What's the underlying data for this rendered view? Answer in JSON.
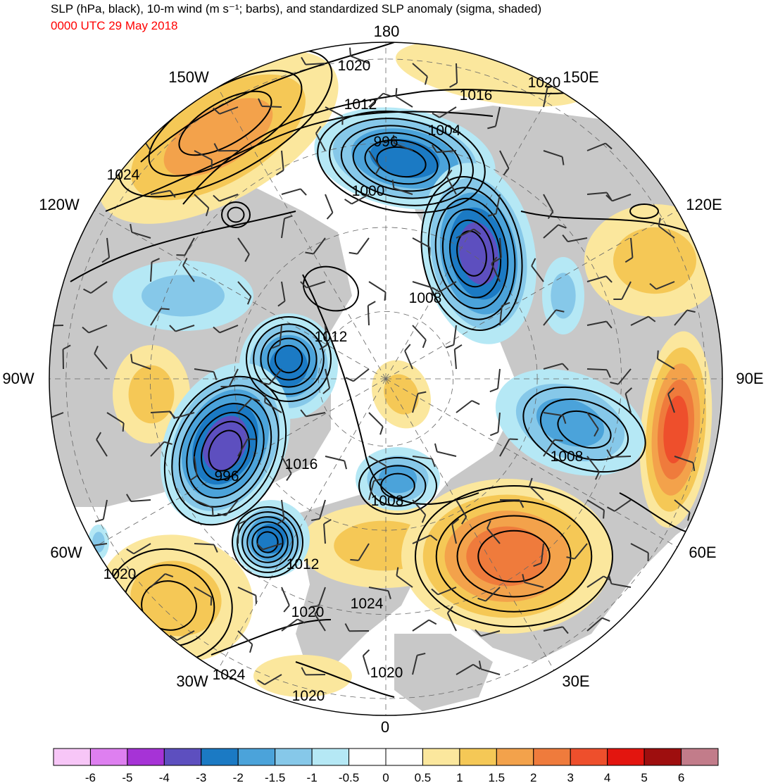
{
  "header": {
    "title": "SLP (hPa, black), 10-m wind (m s⁻¹; barbs), and standardized SLP anomaly (sigma, shaded)",
    "valid_time": "0000 UTC 29 May 2018"
  },
  "map": {
    "projection": "north polar stereographic",
    "longitude_labels": [
      "180",
      "150E",
      "120E",
      "90E",
      "60E",
      "30E",
      "0",
      "30W",
      "60W",
      "90W",
      "120W",
      "150W"
    ],
    "contour_labels": [
      "1020",
      "1016",
      "1020",
      "1012",
      "1004",
      "996",
      "1000",
      "1024",
      "1008",
      "1012",
      "1016",
      "996",
      "1008",
      "1008",
      "1012",
      "1020",
      "1020",
      "1024",
      "1020",
      "1024",
      "1020"
    ],
    "land_color": "#c8c8c8",
    "ocean_color": "#ffffff",
    "features": [
      {
        "type": "high",
        "anomaly": 1.5
      },
      {
        "type": "low",
        "anomaly": -3,
        "label": "996"
      },
      {
        "type": "low",
        "anomaly": -4
      },
      {
        "type": "low",
        "anomaly": -3,
        "label": "996"
      },
      {
        "type": "low",
        "anomaly": -2
      },
      {
        "type": "low",
        "anomaly": -2
      },
      {
        "type": "high",
        "anomaly": 2
      },
      {
        "type": "high",
        "anomaly": 3
      }
    ]
  },
  "colorbar": {
    "boundaries": [
      "-6",
      "-5",
      "-4",
      "-3",
      "-2",
      "-1.5",
      "-1",
      "-0.5",
      "0",
      "0.5",
      "1",
      "1.5",
      "2",
      "3",
      "4",
      "5",
      "6"
    ],
    "colors": [
      "#f7c6f7",
      "#de7ff0",
      "#a633d6",
      "#5d4fbf",
      "#1b7ac4",
      "#4ba3da",
      "#86c8e9",
      "#b5e8f5",
      "#ffffff",
      "#ffffff",
      "#fbe79d",
      "#f5c856",
      "#f3a24b",
      "#ef7b3c",
      "#ee4f2c",
      "#e3150f",
      "#9e0e0e",
      "#c27c8a"
    ]
  }
}
